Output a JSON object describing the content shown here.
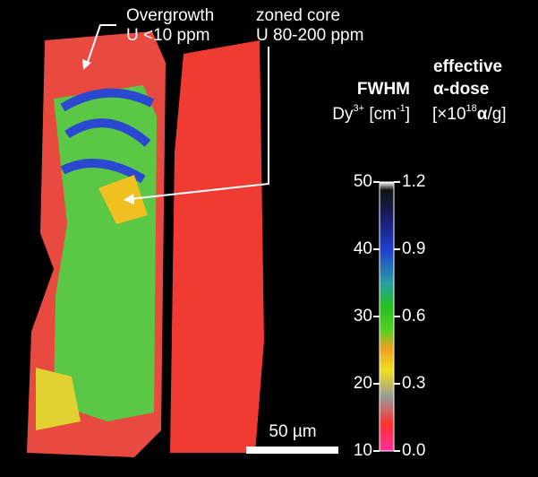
{
  "annotations": {
    "overgrowth": "Overgrowth",
    "overgrowth_u": "U <10 ppm",
    "core": "zoned core",
    "core_u": "U 80-200 ppm"
  },
  "scale_bar": "50 µm",
  "colorbar": {
    "left_title": "FWHM",
    "left_unit": {
      "base": "Dy",
      "sup": "3+",
      "open": "[cm",
      "exp": "-1",
      "close": "]"
    },
    "right_title_1": "effective",
    "right_title_2": "α-dose",
    "right_unit": {
      "open": "[×10",
      "exp": "18",
      "alpha": "α",
      "close": "/g]"
    },
    "left_lim": [
      10,
      50
    ],
    "left_ticks": [
      50,
      40,
      30,
      20,
      10
    ],
    "right_lim": [
      0,
      1.2
    ],
    "right_ticks": [
      1.2,
      0.9,
      0.6,
      0.3,
      {
        "value": 0,
        "label": "0.0"
      }
    ]
  }
}
